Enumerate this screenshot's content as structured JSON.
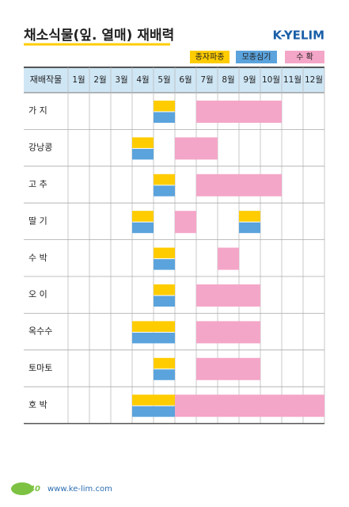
{
  "header": {
    "title": "채소식물(잎. 열매) 재배력",
    "logo": "K-YELIM"
  },
  "legend": [
    {
      "label": "종자파종",
      "color": "#ffcc00"
    },
    {
      "label": "모종심기",
      "color": "#5ba3dc"
    },
    {
      "label": "수 확",
      "color": "#f4a6c8"
    }
  ],
  "table": {
    "columns": [
      "재배작물",
      "1월",
      "2월",
      "3월",
      "4월",
      "5월",
      "6월",
      "7월",
      "8월",
      "9월",
      "10월",
      "11월",
      "12월"
    ],
    "rows": [
      {
        "crop": "가 지",
        "sowing": [
          [
            5,
            5
          ]
        ],
        "transplant": [
          [
            5,
            5
          ]
        ],
        "harvest": [
          [
            7,
            10
          ]
        ]
      },
      {
        "crop": "강낭콩",
        "sowing": [
          [
            4,
            4
          ]
        ],
        "transplant": [
          [
            4,
            4
          ]
        ],
        "harvest": [
          [
            6,
            7
          ]
        ]
      },
      {
        "crop": "고 추",
        "sowing": [
          [
            5,
            5
          ]
        ],
        "transplant": [
          [
            5,
            5
          ]
        ],
        "harvest": [
          [
            7,
            10
          ]
        ]
      },
      {
        "crop": "딸 기",
        "sowing": [
          [
            4,
            4
          ],
          [
            9,
            9
          ]
        ],
        "transplant": [
          [
            4,
            4
          ],
          [
            9,
            9
          ]
        ],
        "harvest": [
          [
            6,
            6
          ]
        ]
      },
      {
        "crop": "수 박",
        "sowing": [
          [
            5,
            5
          ]
        ],
        "transplant": [
          [
            5,
            5
          ]
        ],
        "harvest": [
          [
            8,
            8
          ]
        ]
      },
      {
        "crop": "오 이",
        "sowing": [
          [
            5,
            5
          ]
        ],
        "transplant": [
          [
            5,
            5
          ]
        ],
        "harvest": [
          [
            7,
            9
          ]
        ]
      },
      {
        "crop": "옥수수",
        "sowing": [
          [
            4,
            5
          ]
        ],
        "transplant": [
          [
            4,
            5
          ]
        ],
        "harvest": [
          [
            7,
            9
          ]
        ]
      },
      {
        "crop": "토마토",
        "sowing": [
          [
            5,
            5
          ]
        ],
        "transplant": [
          [
            5,
            5
          ]
        ],
        "harvest": [
          [
            7,
            9
          ]
        ]
      },
      {
        "crop": "호 박",
        "sowing": [
          [
            4,
            5
          ]
        ],
        "transplant": [
          [
            4,
            5
          ]
        ],
        "harvest": [
          [
            6,
            12
          ]
        ]
      }
    ]
  },
  "footer": {
    "page": "40",
    "url": "www.ke-lim.com"
  }
}
